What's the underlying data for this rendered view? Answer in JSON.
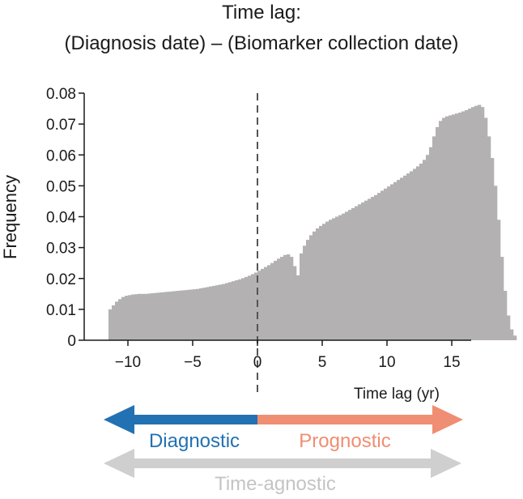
{
  "title_line1": "Time lag:",
  "title_line2": "(Diagnosis date) – (Biomarker collection date)",
  "colors": {
    "bar": "#b3b1b1",
    "diagnostic": "#2271b2",
    "prognostic": "#ef8e72",
    "agnostic": "#cfcfcf",
    "axis": "#1a1a1a",
    "divider": "#555555"
  },
  "arrows": {
    "diagnostic_label": "Diagnostic",
    "prognostic_label": "Prognostic",
    "agnostic_label": "Time-agnostic"
  },
  "chart_data": {
    "type": "bar",
    "xlabel": "Time lag (yr)",
    "ylabel": "Frequency",
    "xlim": [
      -12,
      16
    ],
    "ylim": [
      0,
      0.08
    ],
    "xticks": [
      -10,
      -5,
      0,
      5,
      10,
      15
    ],
    "yticks": [
      0,
      0.01,
      0.02,
      0.03,
      0.04,
      0.05,
      0.06,
      0.07,
      0.08
    ],
    "ytick_labels": [
      "0",
      "0.01",
      "0.02",
      "0.03",
      "0.04",
      "0.05",
      "0.06",
      "0.07",
      "0.08"
    ],
    "reference_line_x": 0,
    "bin_width": 0.25,
    "bin_start": -11.5,
    "values": [
      0.01,
      0.0113,
      0.0125,
      0.0133,
      0.014,
      0.0144,
      0.0146,
      0.0148,
      0.0149,
      0.015,
      0.015,
      0.015,
      0.0151,
      0.0152,
      0.0153,
      0.0154,
      0.0155,
      0.0156,
      0.0157,
      0.0158,
      0.0159,
      0.016,
      0.0161,
      0.0162,
      0.0163,
      0.0164,
      0.0165,
      0.0166,
      0.0168,
      0.017,
      0.0172,
      0.0174,
      0.0176,
      0.0178,
      0.018,
      0.0182,
      0.0185,
      0.0188,
      0.0191,
      0.0194,
      0.0197,
      0.0201,
      0.0205,
      0.0209,
      0.0214,
      0.0219,
      0.0225,
      0.0231,
      0.0237,
      0.0243,
      0.025,
      0.0257,
      0.0264,
      0.027,
      0.0276,
      0.0278,
      0.027,
      0.024,
      0.021,
      0.0281,
      0.0306,
      0.0325,
      0.034,
      0.0352,
      0.0362,
      0.037,
      0.0377,
      0.0384,
      0.039,
      0.0395,
      0.04,
      0.0405,
      0.041,
      0.0416,
      0.0422,
      0.0428,
      0.0434,
      0.044,
      0.0446,
      0.0452,
      0.0458,
      0.0464,
      0.047,
      0.0477,
      0.0484,
      0.0491,
      0.0498,
      0.0505,
      0.0512,
      0.0519,
      0.0526,
      0.0533,
      0.054,
      0.0547,
      0.0555,
      0.0563,
      0.0572,
      0.0584,
      0.06,
      0.0625,
      0.066,
      0.069,
      0.071,
      0.072,
      0.0725,
      0.0728,
      0.0731,
      0.0734,
      0.0737,
      0.0741,
      0.0745,
      0.075,
      0.0755,
      0.0759,
      0.0762,
      0.0755,
      0.072,
      0.066,
      0.059,
      0.05,
      0.039,
      0.027,
      0.016,
      0.008,
      0.0035,
      0.0015
    ]
  }
}
